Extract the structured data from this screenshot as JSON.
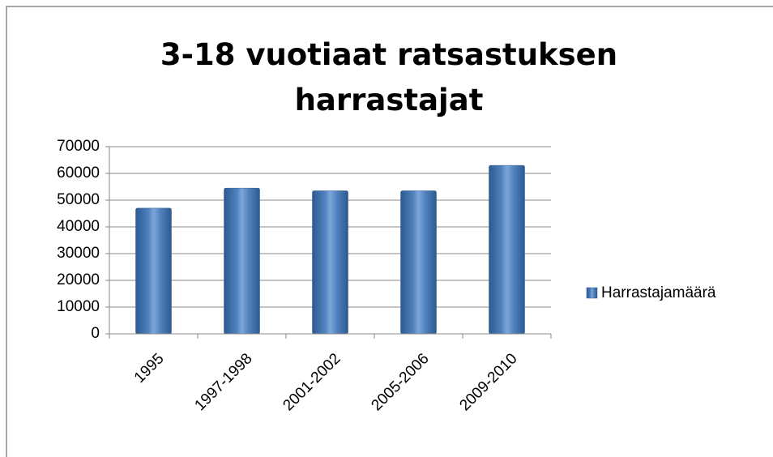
{
  "chart_data": {
    "type": "bar",
    "title": "3-18 vuotiaat ratsastuksen harrastajat",
    "categories": [
      "1995",
      "1997-1998",
      "2001-2002",
      "2005-2006",
      "2009-2010"
    ],
    "series": [
      {
        "name": "Harrastajamäärä",
        "color": "#4f81bd",
        "values": [
          47000,
          54500,
          53500,
          53500,
          63000
        ]
      }
    ],
    "ylim": [
      0,
      70000
    ],
    "yticks": [
      0,
      10000,
      20000,
      30000,
      40000,
      50000,
      60000,
      70000
    ],
    "grid": true,
    "legend": "right"
  }
}
